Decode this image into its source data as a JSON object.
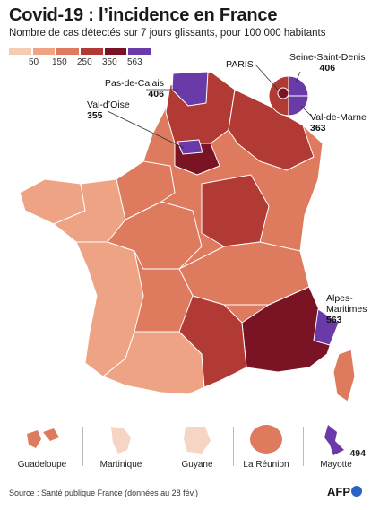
{
  "title": "Covid-19 : l’incidence en France",
  "subtitle": "Nombre de cas détectés sur 7 jours glissants, pour 100 000 habitants",
  "legend": {
    "ticks": [
      "50",
      "150",
      "250",
      "350",
      "563"
    ],
    "colors": [
      "#f6cbb4",
      "#eea384",
      "#de7a5e",
      "#b23a34",
      "#7a1424",
      "#6a3aa8"
    ]
  },
  "labels": {
    "paris": "PARIS",
    "seine_saint_denis_name": "Seine-Saint-Denis",
    "seine_saint_denis_value": "406",
    "pas_de_calais_name": "Pas-de-Calais",
    "pas_de_calais_value": "406",
    "val_d_oise_name": "Val-d’Oise",
    "val_d_oise_value": "355",
    "val_de_marne_name": "Val-de-Marne",
    "val_de_marne_value": "363",
    "alpes_maritimes_name_1": "Alpes-",
    "alpes_maritimes_name_2": "Maritimes",
    "alpes_maritimes_value": "563",
    "mayotte_value": "494"
  },
  "overseas": [
    {
      "name": "Guadeloupe",
      "color": "#de7a5e"
    },
    {
      "name": "Martinique",
      "color": "#f6d5c4"
    },
    {
      "name": "Guyane",
      "color": "#f6d5c4"
    },
    {
      "name": "La Réunion",
      "color": "#de7a5e"
    },
    {
      "name": "Mayotte",
      "color": "#6a3aa8"
    }
  ],
  "source": "Source : Santé publique France (données au 28 fév.)",
  "brand": "AFP"
}
